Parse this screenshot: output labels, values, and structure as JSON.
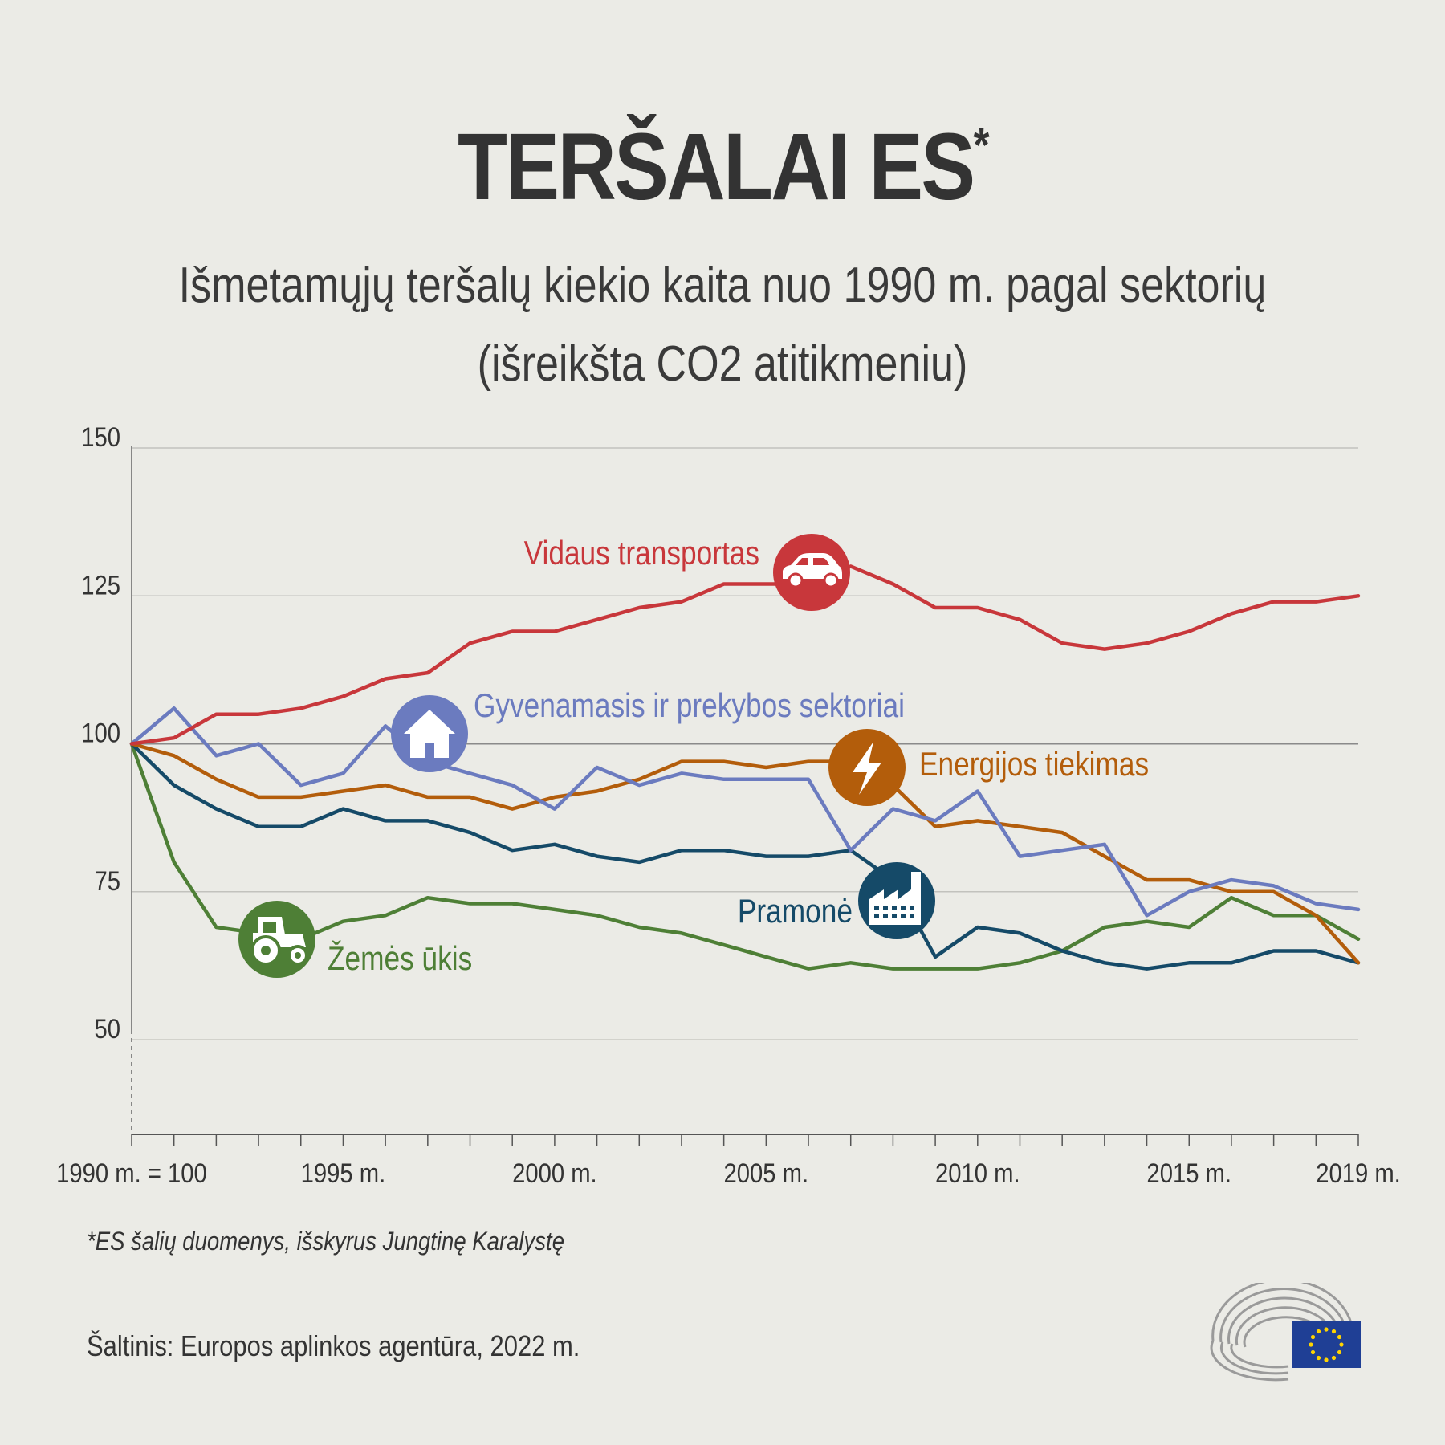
{
  "header": {
    "title": "TERŠALAI ES",
    "title_mark": "*",
    "subtitle_line1": "Išmetamųjų teršalų kiekio kaita nuo 1990 m. pagal sektorių",
    "subtitle_line2": "(išreikšta CO2 atitikmeniu)"
  },
  "footer": {
    "footnote": "*ES šalių duomenys, išskyrus Jungtinę Karalystę",
    "source": "Šaltinis: Europos aplinkos agentūra, 2022 m."
  },
  "chart_data": {
    "type": "line",
    "x": [
      1990,
      1991,
      1992,
      1993,
      1994,
      1995,
      1996,
      1997,
      1998,
      1999,
      2000,
      2001,
      2002,
      2003,
      2004,
      2005,
      2006,
      2007,
      2008,
      2009,
      2010,
      2011,
      2012,
      2013,
      2014,
      2015,
      2016,
      2017,
      2018,
      2019
    ],
    "x_ticks": [
      {
        "value": 1990,
        "label": "1990 m. = 100"
      },
      {
        "value": 1995,
        "label": "1995 m."
      },
      {
        "value": 2000,
        "label": "2000 m."
      },
      {
        "value": 2005,
        "label": "2005 m."
      },
      {
        "value": 2010,
        "label": "2010 m."
      },
      {
        "value": 2015,
        "label": "2015 m."
      },
      {
        "value": 2019,
        "label": "2019 m."
      }
    ],
    "y_ticks": [
      50,
      75,
      100,
      125,
      150
    ],
    "ylim": [
      34,
      150
    ],
    "baseline": 100,
    "grid": true,
    "series": [
      {
        "name": "Vidaus transportas",
        "color": "#c8373b",
        "icon": "car-icon",
        "values": [
          100,
          101,
          105,
          105,
          106,
          108,
          111,
          112,
          117,
          119,
          119,
          121,
          123,
          124,
          127,
          127,
          127,
          130,
          127,
          123,
          123,
          121,
          117,
          116,
          117,
          119,
          122,
          124,
          124,
          125
        ]
      },
      {
        "name": "Gyvenamasis ir prekybos sektoriai",
        "color": "#6b7bbf",
        "icon": "house-icon",
        "values": [
          100,
          106,
          98,
          100,
          93,
          95,
          103,
          97,
          95,
          93,
          89,
          96,
          93,
          95,
          94,
          94,
          94,
          82,
          89,
          87,
          92,
          81,
          82,
          83,
          71,
          75,
          77,
          76,
          73,
          72
        ]
      },
      {
        "name": "Energijos tiekimas",
        "color": "#b35d0b",
        "icon": "lightning-icon",
        "values": [
          100,
          98,
          94,
          91,
          91,
          92,
          93,
          91,
          91,
          89,
          91,
          92,
          94,
          97,
          97,
          96,
          97,
          97,
          93,
          86,
          87,
          86,
          85,
          81,
          77,
          77,
          75,
          75,
          71,
          63
        ]
      },
      {
        "name": "Pramonė",
        "color": "#154a68",
        "icon": "factory-icon",
        "values": [
          100,
          93,
          89,
          86,
          86,
          89,
          87,
          87,
          85,
          82,
          83,
          81,
          80,
          82,
          82,
          81,
          81,
          82,
          77,
          64,
          69,
          68,
          65,
          63,
          62,
          63,
          63,
          65,
          65,
          63
        ]
      },
      {
        "name": "Žemės ūkis",
        "color": "#4e7f36",
        "icon": "tractor-icon",
        "values": [
          100,
          80,
          69,
          68,
          67,
          70,
          71,
          74,
          73,
          73,
          72,
          71,
          69,
          68,
          66,
          64,
          62,
          63,
          62,
          62,
          62,
          63,
          65,
          69,
          70,
          69,
          74,
          71,
          71,
          67
        ]
      }
    ]
  }
}
